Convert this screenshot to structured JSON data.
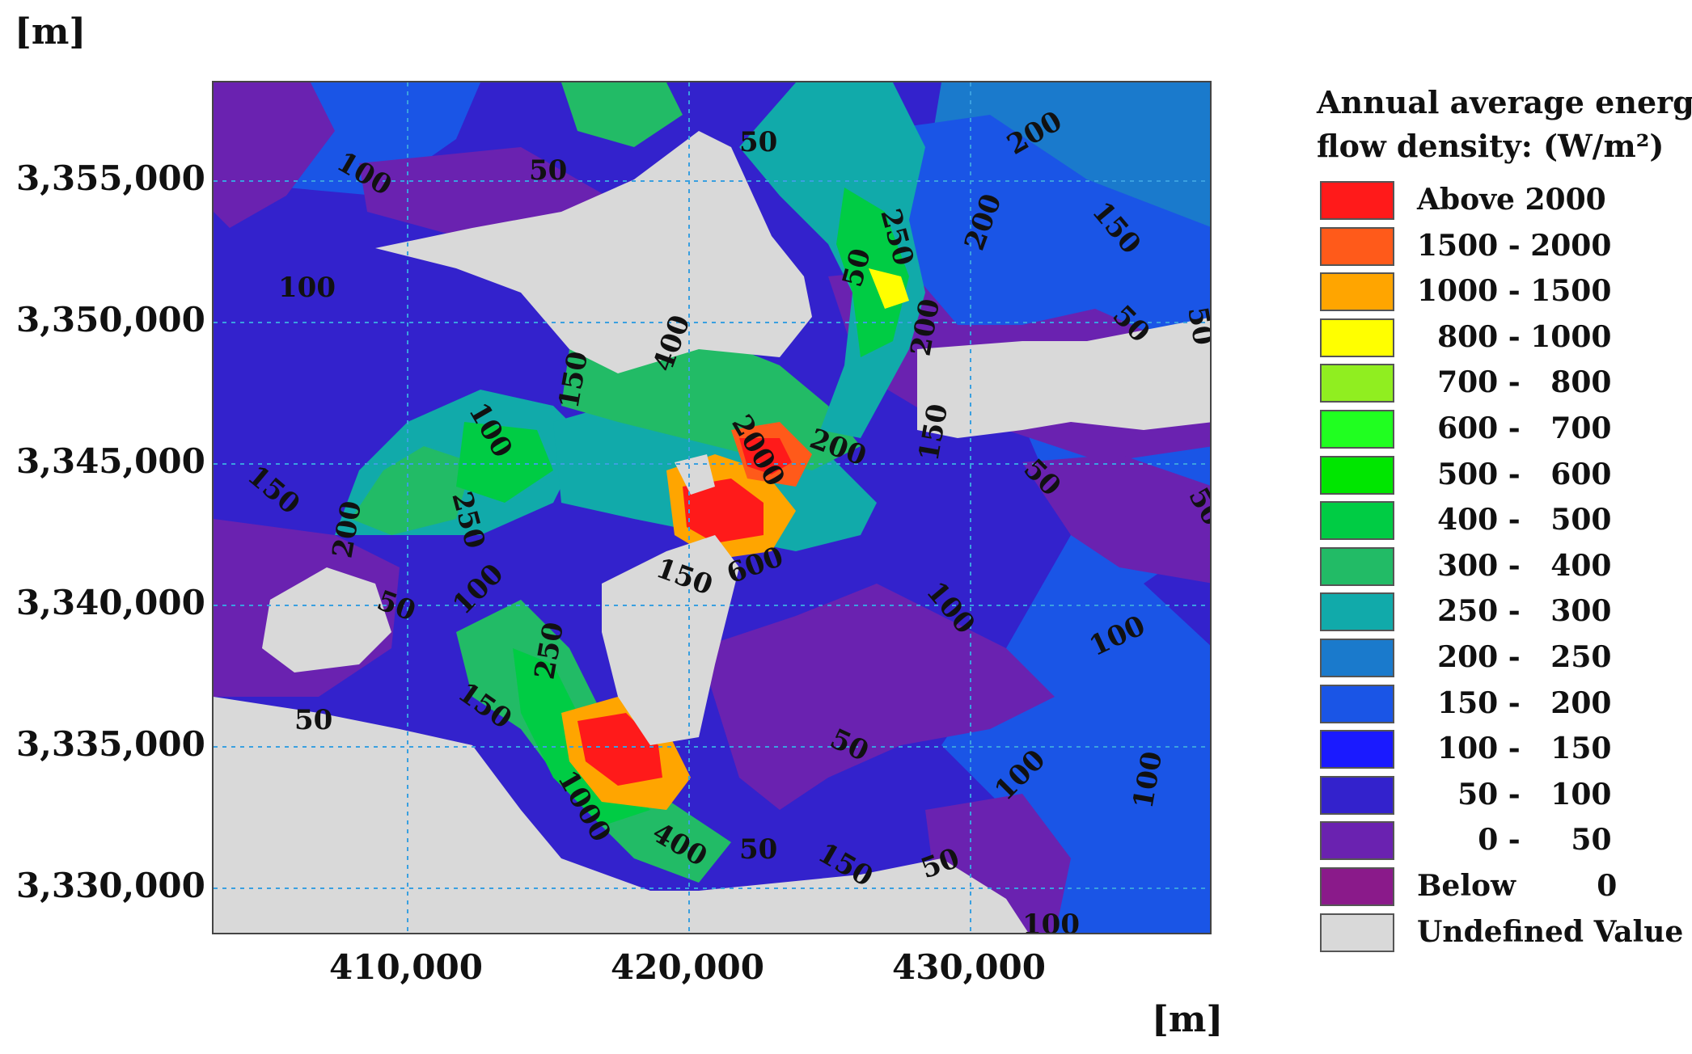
{
  "axis": {
    "y_unit": "[m]",
    "x_unit": "[m]",
    "y_ticks": [
      "3,355,000",
      "3,350,000",
      "3,345,000",
      "3,340,000",
      "3,335,000",
      "3,330,000"
    ],
    "x_ticks": [
      "410,000",
      "420,000",
      "430,000"
    ]
  },
  "legend": {
    "title_line1": "Annual average energy",
    "title_line2": "flow density: (W/m²)",
    "items": [
      {
        "label": "Above 2000",
        "color": "#ff1a1a"
      },
      {
        "label": "1500 - 2000",
        "color": "#ff5a1a"
      },
      {
        "label": "1000 - 1500",
        "color": "#ffa500"
      },
      {
        "label": "  800 - 1000",
        "color": "#ffff00"
      },
      {
        "label": "  700 -   800",
        "color": "#90ee20"
      },
      {
        "label": "  600 -   700",
        "color": "#20ff20"
      },
      {
        "label": "  500 -   600",
        "color": "#00e600"
      },
      {
        "label": "  400 -   500",
        "color": "#00cc44"
      },
      {
        "label": "  300 -   400",
        "color": "#22bb66"
      },
      {
        "label": "  250 -   300",
        "color": "#11aaaa"
      },
      {
        "label": "  200 -   250",
        "color": "#1a7acc"
      },
      {
        "label": "  150 -   200",
        "color": "#1a55e6"
      },
      {
        "label": "  100 -   150",
        "color": "#1a1aff"
      },
      {
        "label": "    50 -   100",
        "color": "#3322cc"
      },
      {
        "label": "      0 -     50",
        "color": "#6a22b0"
      },
      {
        "label": "Below        0",
        "color": "#8a1a8a"
      },
      {
        "label": "Undefined Value",
        "color": "#d9d9d9"
      }
    ]
  },
  "contour_labels": [
    "100",
    "50",
    "50",
    "200",
    "250",
    "200",
    "150",
    "100",
    "50",
    "200",
    "50",
    "50",
    "400",
    "100",
    "150",
    "2000",
    "200",
    "150",
    "50",
    "50",
    "150",
    "250",
    "200",
    "150",
    "600",
    "50",
    "100",
    "100",
    "250",
    "100",
    "150",
    "50",
    "1000",
    "50",
    "100",
    "100",
    "400",
    "50",
    "150",
    "50",
    "100"
  ]
}
